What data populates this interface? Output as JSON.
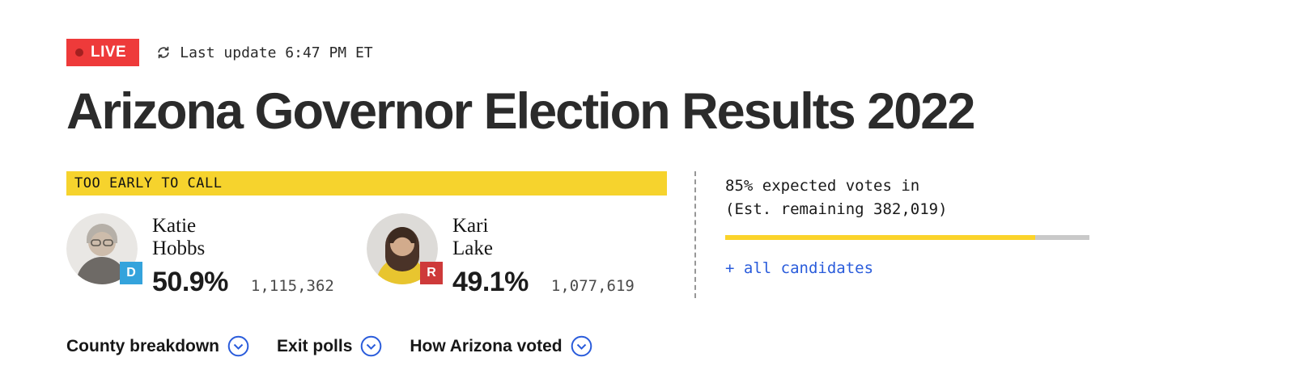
{
  "colors": {
    "live_red": "#ee3a3a",
    "live_dot": "#a32020",
    "banner_yellow": "#f6d32d",
    "dem_blue": "#34a3dc",
    "rep_red": "#ce3a3a",
    "link_blue": "#2a5cdb",
    "bar_yellow": "#fbd32a",
    "bar_gray": "#c9c9c9"
  },
  "live": {
    "label": "LIVE",
    "update_text": "Last update 6:47 PM ET"
  },
  "headline": "Arizona Governor Election Results 2022",
  "race": {
    "status_banner": "TOO EARLY TO CALL",
    "candidates": [
      {
        "first_name": "Katie",
        "last_name": "Hobbs",
        "party": "D",
        "percent": "50.9%",
        "votes": "1,115,362"
      },
      {
        "first_name": "Kari",
        "last_name": "Lake",
        "party": "R",
        "percent": "49.1%",
        "votes": "1,077,619"
      }
    ]
  },
  "reporting": {
    "line1": "85% expected votes in",
    "line2": "(Est. remaining 382,019)",
    "percent_in": 85,
    "all_candidates_link": "+ all candidates"
  },
  "nav": {
    "items": [
      {
        "label": "County breakdown"
      },
      {
        "label": "Exit polls"
      },
      {
        "label": "How Arizona voted"
      }
    ]
  }
}
